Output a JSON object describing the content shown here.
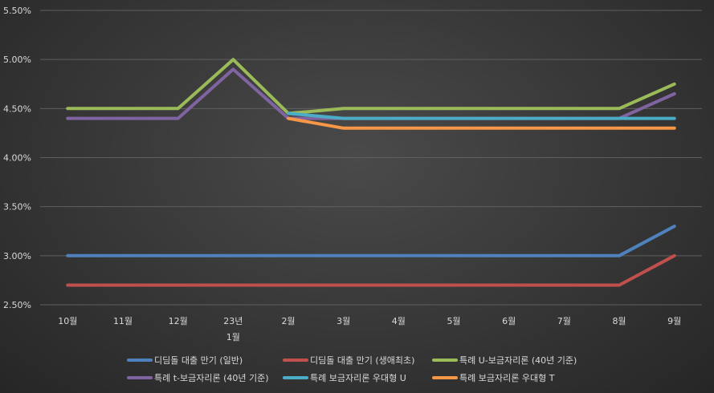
{
  "chart_data": {
    "type": "line",
    "categories": [
      "10월",
      "11월",
      "12월",
      "23년 1월",
      "2월",
      "3월",
      "4월",
      "5월",
      "6월",
      "7월",
      "8월",
      "9월"
    ],
    "category_lines": [
      [
        "10월"
      ],
      [
        "11월"
      ],
      [
        "12월"
      ],
      [
        "23년",
        "1월"
      ],
      [
        "2월"
      ],
      [
        "3월"
      ],
      [
        "4월"
      ],
      [
        "5월"
      ],
      [
        "6월"
      ],
      [
        "7월"
      ],
      [
        "8월"
      ],
      [
        "9월"
      ]
    ],
    "y_ticks": [
      "2.50%",
      "3.00%",
      "3.50%",
      "4.00%",
      "4.50%",
      "5.00%",
      "5.50%"
    ],
    "ylim": [
      2.5,
      5.5
    ],
    "grid": true,
    "legend_position": "bottom",
    "series": [
      {
        "name": "디딤돌 대출 만기 (일반)",
        "color": "#4f81bd",
        "values": [
          3.0,
          3.0,
          3.0,
          3.0,
          3.0,
          3.0,
          3.0,
          3.0,
          3.0,
          3.0,
          3.0,
          3.3
        ]
      },
      {
        "name": "디딤돌 대출 만기 (생애최초)",
        "color": "#c0504d",
        "values": [
          2.7,
          2.7,
          2.7,
          2.7,
          2.7,
          2.7,
          2.7,
          2.7,
          2.7,
          2.7,
          2.7,
          3.0
        ]
      },
      {
        "name": "특례 U-보금자리론 (40년 기준)",
        "color": "#9bbb59",
        "values": [
          4.5,
          4.5,
          4.5,
          5.0,
          4.45,
          4.5,
          4.5,
          4.5,
          4.5,
          4.5,
          4.5,
          4.75
        ]
      },
      {
        "name": "특례 t-보금자리론 (40년 기준)",
        "color": "#8064a2",
        "values": [
          4.4,
          4.4,
          4.4,
          4.9,
          4.4,
          4.4,
          4.4,
          4.4,
          4.4,
          4.4,
          4.4,
          4.65
        ]
      },
      {
        "name": "특례 보금자리론 우대형 U",
        "color": "#4bacc6",
        "values": [
          null,
          null,
          null,
          null,
          4.45,
          4.4,
          4.4,
          4.4,
          4.4,
          4.4,
          4.4,
          4.4
        ]
      },
      {
        "name": "특례 보금자리론 우대형 T",
        "color": "#f79646",
        "values": [
          null,
          null,
          null,
          null,
          4.4,
          4.3,
          4.3,
          4.3,
          4.3,
          4.3,
          4.3,
          4.3
        ]
      }
    ]
  }
}
